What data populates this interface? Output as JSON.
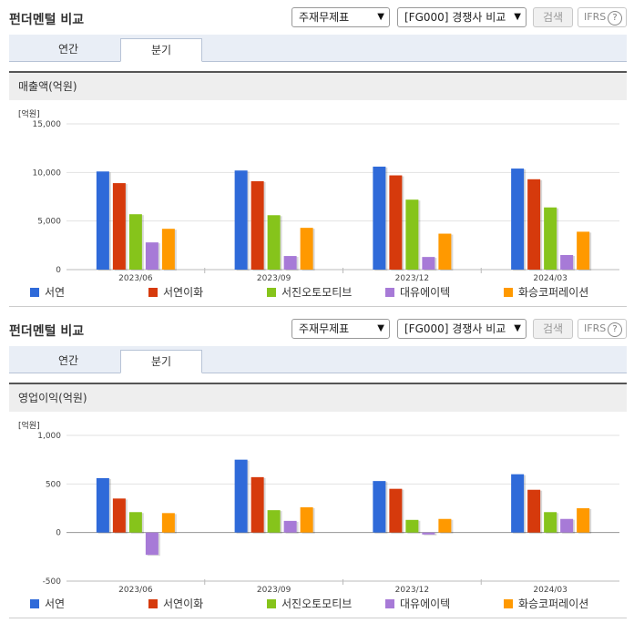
{
  "colors": {
    "series": [
      "#2f6ad9",
      "#d63a0c",
      "#86c41b",
      "#a77ad7",
      "#ff9900"
    ]
  },
  "panels": [
    {
      "title": "펀더멘털 비교",
      "statement_select": "주재무제표",
      "compare_select": "[FG000] 경쟁사 비교",
      "search_label": "검색",
      "ifrs_label": "IFRS",
      "help_icon": "?",
      "tabs": [
        "연간",
        "분기"
      ],
      "section_title": "매출액(억원)",
      "unit_label": "[억원]"
    },
    {
      "title": "펀더멘털 비교",
      "statement_select": "주재무제표",
      "compare_select": "[FG000] 경쟁사 비교",
      "search_label": "검색",
      "ifrs_label": "IFRS",
      "help_icon": "?",
      "tabs": [
        "연간",
        "분기"
      ],
      "section_title": "영업이익(억원)",
      "unit_label": "[억원]"
    }
  ],
  "chart_data": [
    {
      "type": "bar",
      "categories": [
        "2023/06",
        "2023/09",
        "2023/12",
        "2024/03"
      ],
      "series": [
        {
          "name": "서연",
          "values": [
            10100,
            10200,
            10600,
            10400
          ]
        },
        {
          "name": "서연이화",
          "values": [
            8900,
            9100,
            9700,
            9300
          ]
        },
        {
          "name": "서진오토모티브",
          "values": [
            5700,
            5600,
            7200,
            6400
          ]
        },
        {
          "name": "대유에이텍",
          "values": [
            2800,
            1400,
            1300,
            1500
          ]
        },
        {
          "name": "화승코퍼레이션",
          "values": [
            4200,
            4300,
            3700,
            3900
          ]
        }
      ],
      "ylim": [
        0,
        15000
      ],
      "yticks": [
        0,
        5000,
        10000,
        15000
      ],
      "ytick_labels": [
        "0",
        "5,000",
        "10,000",
        "15,000"
      ]
    },
    {
      "type": "bar",
      "categories": [
        "2023/06",
        "2023/09",
        "2023/12",
        "2024/03"
      ],
      "series": [
        {
          "name": "서연",
          "values": [
            560,
            750,
            530,
            600
          ]
        },
        {
          "name": "서연이화",
          "values": [
            350,
            570,
            450,
            440
          ]
        },
        {
          "name": "서진오토모티브",
          "values": [
            210,
            230,
            130,
            210
          ]
        },
        {
          "name": "대유에이텍",
          "values": [
            -230,
            120,
            -20,
            140
          ]
        },
        {
          "name": "화승코퍼레이션",
          "values": [
            200,
            260,
            140,
            250
          ]
        }
      ],
      "ylim": [
        -500,
        1000
      ],
      "yticks": [
        -500,
        0,
        500,
        1000
      ],
      "ytick_labels": [
        "-500",
        "0",
        "500",
        "1,000"
      ]
    }
  ]
}
